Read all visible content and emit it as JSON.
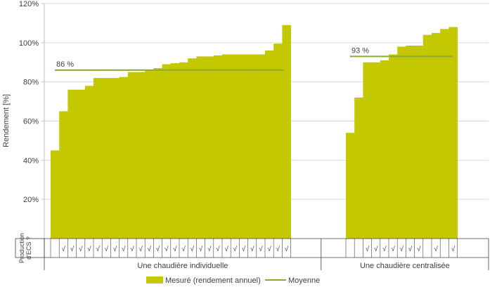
{
  "chart_data": {
    "type": "bar",
    "ylabel": "Rendement [%]",
    "ylim": [
      0,
      120
    ],
    "yticks": [
      "",
      "20%",
      "40%",
      "60%",
      "80%",
      "100%",
      "120%"
    ],
    "row_header": [
      "Production",
      "d'ECS ?"
    ],
    "check_mark": "√",
    "colors": {
      "bar": "#c3c800",
      "mean": "#8aad2e"
    },
    "groups": [
      {
        "name": "Une chaudière individuelle",
        "mean": 86,
        "mean_label": "86 %",
        "values": [
          45,
          65,
          76,
          76,
          78,
          82,
          82,
          82,
          82.5,
          85,
          85,
          86,
          87,
          89,
          89.5,
          90,
          92,
          93,
          93,
          93.5,
          94,
          94,
          94,
          94,
          94,
          96,
          99.5,
          109
        ],
        "ecs": [
          false,
          true,
          true,
          true,
          true,
          true,
          true,
          true,
          true,
          true,
          true,
          true,
          true,
          true,
          true,
          true,
          true,
          true,
          true,
          true,
          true,
          true,
          true,
          true,
          true,
          true,
          true,
          true
        ]
      },
      {
        "name": "Une chaudière centralisée",
        "mean": 93,
        "mean_label": "93 %",
        "values": [
          54,
          72,
          90,
          90,
          91,
          94,
          98,
          98.5,
          98.5,
          104,
          105,
          107,
          108
        ],
        "ecs": [
          false,
          false,
          true,
          true,
          true,
          true,
          true,
          true,
          true,
          false,
          true,
          false,
          true
        ]
      }
    ],
    "legend": [
      {
        "label": "Mesuré (rendement annuel)",
        "kind": "bar"
      },
      {
        "label": "Moyenne",
        "kind": "line"
      }
    ]
  }
}
